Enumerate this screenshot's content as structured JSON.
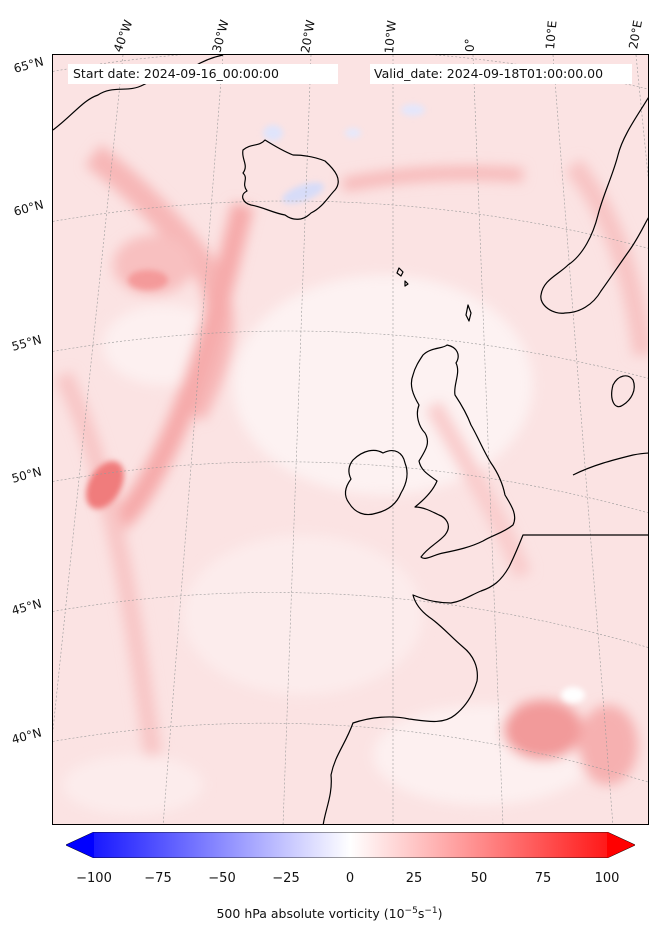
{
  "map": {
    "start_date": "Start date: 2024-09-16_00:00:00",
    "valid_date": "Valid_date: 2024-09-18T01:00:00.00",
    "longitude_labels": [
      "40°W",
      "30°W",
      "20°W",
      "10°W",
      "0°",
      "10°E",
      "20°E"
    ],
    "latitude_labels": [
      "65°N",
      "60°N",
      "55°N",
      "50°N",
      "45°N",
      "40°N"
    ],
    "region": "North Atlantic / Western Europe",
    "field_colors": {
      "positive": "#ff0000",
      "negative": "#0000ff",
      "neutral": "#ffffff",
      "coastline": "#000000"
    }
  },
  "colorbar": {
    "ticks": [
      "−100",
      "−75",
      "−50",
      "−25",
      "0",
      "25",
      "50",
      "75",
      "100"
    ],
    "range": [
      -100,
      100
    ],
    "title": "500 hPa absolute vorticity (10",
    "title_exp1": "−5",
    "title_mid": "s",
    "title_exp2": "−1",
    "title_end": ")"
  }
}
